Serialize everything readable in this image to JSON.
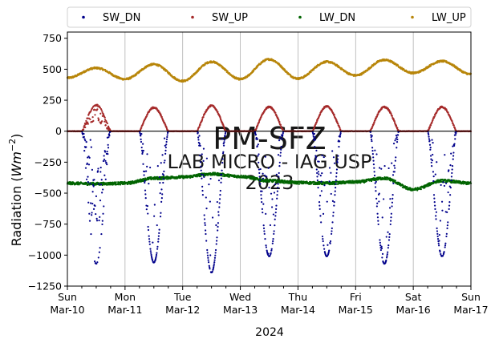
{
  "chart_data": {
    "type": "scatter",
    "ylabel": "Radiation (Wm⁻²)",
    "ylabel_main": "Radiation (",
    "ylabel_unit": "Wm",
    "ylabel_exp": "−2",
    "ylabel_close": ")",
    "xlabel": "2024",
    "ylim": [
      -1250,
      800
    ],
    "xlim_days": [
      0,
      7
    ],
    "yticks": [
      -1250,
      -1000,
      -750,
      -500,
      -250,
      0,
      250,
      500,
      750
    ],
    "ytick_labels": [
      "−1250",
      "−1000",
      "−750",
      "−500",
      "−250",
      "0",
      "250",
      "500",
      "750"
    ],
    "xtick_labels": [
      {
        "day": "Sun",
        "date": "Mar-10"
      },
      {
        "day": "Mon",
        "date": "Mar-11"
      },
      {
        "day": "Tue",
        "date": "Mar-12"
      },
      {
        "day": "Wed",
        "date": "Mar-13"
      },
      {
        "day": "Thu",
        "date": "Mar-14"
      },
      {
        "day": "Fri",
        "date": "Mar-15"
      },
      {
        "day": "Sat",
        "date": "Mar-16"
      },
      {
        "day": "Sun",
        "date": "Mar-17"
      }
    ],
    "grid": "vertical",
    "zero_line": true,
    "legend_position": "top",
    "series": [
      {
        "name": "SW_DN",
        "color": "#00008b",
        "daily_min": [
          -1070,
          -1060,
          -1140,
          -1010,
          -1010,
          -1070,
          -1010
        ],
        "daily_peak_offset": [
          0.22,
          0.22,
          0.26,
          0.2,
          0.2,
          0.2,
          0.18
        ]
      },
      {
        "name": "SW_UP",
        "color": "#a52a2a",
        "daily_max": [
          210,
          190,
          205,
          195,
          200,
          195,
          195
        ]
      },
      {
        "name": "LW_DN",
        "color": "#006400",
        "points": [
          [
            0,
            -420
          ],
          [
            0.5,
            -425
          ],
          [
            1,
            -420
          ],
          [
            1.5,
            -380
          ],
          [
            2,
            -370
          ],
          [
            2.5,
            -345
          ],
          [
            3,
            -365
          ],
          [
            3.5,
            -400
          ],
          [
            4,
            -415
          ],
          [
            4.5,
            -420
          ],
          [
            5,
            -410
          ],
          [
            5.5,
            -380
          ],
          [
            6,
            -470
          ],
          [
            6.5,
            -400
          ],
          [
            7,
            -420
          ]
        ]
      },
      {
        "name": "LW_UP",
        "color": "#b8860b",
        "points": [
          [
            0,
            430
          ],
          [
            0.5,
            510
          ],
          [
            1,
            420
          ],
          [
            1.5,
            540
          ],
          [
            2,
            405
          ],
          [
            2.5,
            560
          ],
          [
            3,
            420
          ],
          [
            3.5,
            580
          ],
          [
            4,
            425
          ],
          [
            4.5,
            560
          ],
          [
            5,
            450
          ],
          [
            5.5,
            575
          ],
          [
            6,
            470
          ],
          [
            6.5,
            565
          ],
          [
            7,
            460
          ]
        ]
      }
    ]
  },
  "watermark": {
    "line1": "PM-SFZ",
    "line2": "LAB MICRO - IAG USP",
    "line3": "2023"
  }
}
